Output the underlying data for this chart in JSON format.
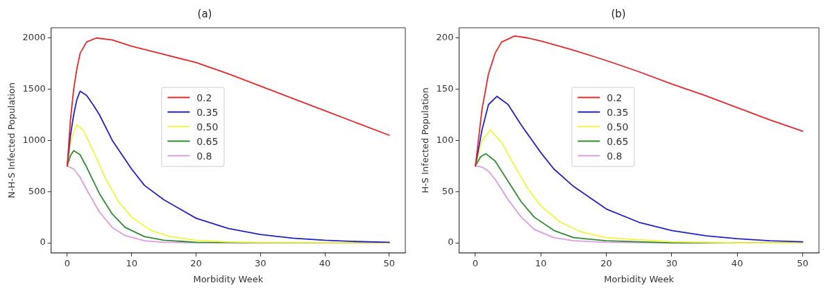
{
  "chart_data": [
    {
      "type": "line",
      "title": "(a)",
      "xlabel": "Morbidity Week",
      "ylabel": "N-H-S Infected Population",
      "xlim": [
        -2.5,
        52.5
      ],
      "ylim": [
        -100,
        2100
      ],
      "xticks": [
        0,
        10,
        20,
        30,
        40,
        50
      ],
      "yticks": [
        0,
        500,
        1000,
        1500,
        2000
      ],
      "grid": false,
      "legend": "center",
      "marker": "none",
      "line_style": "solid",
      "series": [
        {
          "name": "0.2",
          "color": "#e8262a",
          "x": [
            0,
            0.5,
            1,
            1.5,
            2,
            3,
            4.5,
            7,
            10,
            15,
            20,
            25,
            30,
            35,
            40,
            45,
            50
          ],
          "values": [
            750,
            1200,
            1500,
            1700,
            1850,
            1960,
            2000,
            1980,
            1920,
            1840,
            1760,
            1650,
            1530,
            1410,
            1290,
            1170,
            1050
          ]
        },
        {
          "name": "0.35",
          "color": "#2020c8",
          "x": [
            0,
            0.5,
            1,
            1.5,
            2,
            3,
            4,
            5,
            7,
            10,
            12,
            15,
            20,
            25,
            30,
            35,
            40,
            45,
            50
          ],
          "values": [
            750,
            1050,
            1250,
            1400,
            1480,
            1440,
            1350,
            1250,
            1000,
            720,
            560,
            420,
            240,
            140,
            80,
            45,
            25,
            12,
            5
          ]
        },
        {
          "name": "0.50",
          "color": "#f4f43c",
          "x": [
            0,
            0.4,
            0.8,
            1.5,
            2.5,
            4,
            6,
            8,
            10,
            13,
            16,
            20,
            25,
            30,
            40,
            50
          ],
          "values": [
            750,
            930,
            1050,
            1150,
            1100,
            900,
            620,
            400,
            250,
            120,
            60,
            25,
            8,
            3,
            1,
            0
          ]
        },
        {
          "name": "0.65",
          "color": "#2e8b2e",
          "x": [
            0,
            0.5,
            1,
            2,
            3,
            5,
            7,
            9,
            12,
            15,
            20,
            30,
            50
          ],
          "values": [
            750,
            850,
            900,
            860,
            740,
            480,
            280,
            150,
            60,
            25,
            5,
            1,
            0
          ]
        },
        {
          "name": "0.8",
          "color": "#dc9be0",
          "x": [
            0,
            1,
            2,
            3,
            5,
            7,
            9,
            12,
            15,
            20,
            30,
            50
          ],
          "values": [
            750,
            720,
            640,
            520,
            300,
            150,
            70,
            20,
            5,
            1,
            0,
            0
          ]
        }
      ]
    },
    {
      "type": "line",
      "title": "(b)",
      "xlabel": "Morbidity Week",
      "ylabel": "H-S Infected Population",
      "xlim": [
        -2.5,
        52.5
      ],
      "ylim": [
        -10,
        210
      ],
      "xticks": [
        0,
        10,
        20,
        30,
        40,
        50
      ],
      "yticks": [
        0,
        50,
        100,
        150,
        200
      ],
      "grid": false,
      "legend": "center",
      "marker": "none",
      "line_style": "solid",
      "series": [
        {
          "name": "0.2",
          "color": "#e8262a",
          "x": [
            0,
            1,
            2,
            3,
            4,
            6,
            8,
            10,
            15,
            20,
            25,
            30,
            35,
            40,
            45,
            50
          ],
          "values": [
            75,
            130,
            165,
            185,
            196,
            202,
            200,
            197,
            188,
            178,
            167,
            155,
            144,
            132,
            120,
            109
          ]
        },
        {
          "name": "0.35",
          "color": "#2020c8",
          "x": [
            0,
            1,
            2,
            3.3,
            5,
            7,
            10,
            12,
            15,
            20,
            25,
            30,
            35,
            40,
            45,
            50
          ],
          "values": [
            75,
            110,
            135,
            143,
            135,
            115,
            88,
            72,
            55,
            33,
            20,
            12,
            7,
            4,
            2,
            1
          ]
        },
        {
          "name": "0.50",
          "color": "#f4f43c",
          "x": [
            0,
            1,
            2.3,
            4,
            6,
            8,
            10,
            13,
            16,
            20,
            30,
            40,
            50
          ],
          "values": [
            75,
            100,
            110,
            98,
            75,
            53,
            36,
            20,
            11,
            5,
            1,
            0,
            0
          ]
        },
        {
          "name": "0.65",
          "color": "#2e8b2e",
          "x": [
            0,
            0.8,
            1.6,
            3,
            5,
            7,
            9,
            12,
            15,
            20,
            30,
            50
          ],
          "values": [
            75,
            84,
            87,
            80,
            60,
            40,
            25,
            12,
            5,
            2,
            0,
            0
          ]
        },
        {
          "name": "0.8",
          "color": "#dc9be0",
          "x": [
            0,
            1,
            2,
            3,
            5,
            7,
            9,
            12,
            15,
            20,
            30,
            50
          ],
          "values": [
            75,
            74,
            70,
            62,
            42,
            25,
            13,
            5,
            2,
            0.5,
            0,
            0
          ]
        }
      ]
    }
  ]
}
